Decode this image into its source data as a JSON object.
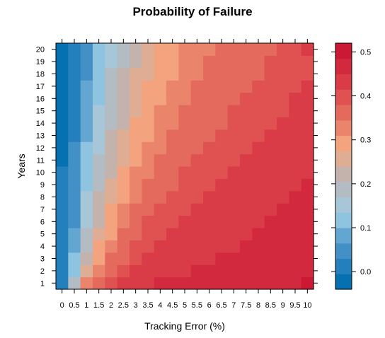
{
  "chart_data": {
    "type": "heatmap",
    "title": "Probability of Failure",
    "xlabel": "Tracking Error (%)",
    "ylabel": "Years",
    "x": [
      0,
      0.5,
      1,
      1.5,
      2,
      2.5,
      3,
      3.5,
      4,
      4.5,
      5,
      5.5,
      6,
      6.5,
      7,
      7.5,
      8,
      8.5,
      9,
      9.5,
      10
    ],
    "y": [
      1,
      2,
      3,
      4,
      5,
      6,
      7,
      8,
      9,
      10,
      11,
      12,
      13,
      14,
      15,
      16,
      17,
      18,
      19,
      20
    ],
    "x_tick_labels": [
      "0",
      "0.5",
      "1",
      "1.5",
      "2",
      "2.5",
      "3",
      "3.5",
      "4",
      "4.5",
      "5",
      "5.5",
      "6",
      "6.5",
      "7",
      "7.5",
      "8",
      "8.5",
      "9",
      "9.5",
      "10"
    ],
    "y_tick_labels": [
      "1",
      "2",
      "3",
      "4",
      "5",
      "6",
      "7",
      "8",
      "9",
      "10",
      "11",
      "12",
      "13",
      "14",
      "15",
      "16",
      "17",
      "18",
      "19",
      "20"
    ],
    "z": [
      [
        0.0,
        0.17,
        0.32,
        0.38,
        0.4,
        0.43,
        0.44,
        0.45,
        0.46,
        0.46,
        0.46,
        0.47,
        0.47,
        0.47,
        0.47,
        0.47,
        0.47,
        0.47,
        0.47,
        0.47,
        0.51
      ],
      [
        0.0,
        0.13,
        0.26,
        0.33,
        0.38,
        0.41,
        0.42,
        0.43,
        0.44,
        0.45,
        0.45,
        0.46,
        0.46,
        0.47,
        0.47,
        0.47,
        0.47,
        0.47,
        0.47,
        0.47,
        0.47
      ],
      [
        0.0,
        0.1,
        0.23,
        0.31,
        0.36,
        0.38,
        0.4,
        0.42,
        0.43,
        0.44,
        0.44,
        0.45,
        0.45,
        0.46,
        0.46,
        0.47,
        0.47,
        0.47,
        0.47,
        0.47,
        0.47
      ],
      [
        0.0,
        0.08,
        0.2,
        0.29,
        0.33,
        0.37,
        0.39,
        0.41,
        0.42,
        0.43,
        0.43,
        0.44,
        0.44,
        0.45,
        0.45,
        0.46,
        0.46,
        0.47,
        0.47,
        0.47,
        0.47
      ],
      [
        0.0,
        0.07,
        0.18,
        0.26,
        0.31,
        0.35,
        0.38,
        0.4,
        0.41,
        0.42,
        0.43,
        0.43,
        0.44,
        0.44,
        0.45,
        0.45,
        0.46,
        0.46,
        0.47,
        0.47,
        0.47
      ],
      [
        0.0,
        0.06,
        0.16,
        0.24,
        0.29,
        0.33,
        0.37,
        0.39,
        0.4,
        0.41,
        0.42,
        0.43,
        0.43,
        0.44,
        0.44,
        0.45,
        0.45,
        0.46,
        0.46,
        0.47,
        0.47
      ],
      [
        0.0,
        0.05,
        0.15,
        0.22,
        0.28,
        0.32,
        0.35,
        0.37,
        0.39,
        0.4,
        0.41,
        0.42,
        0.43,
        0.43,
        0.44,
        0.44,
        0.45,
        0.45,
        0.46,
        0.46,
        0.47
      ],
      [
        0.0,
        0.05,
        0.14,
        0.21,
        0.27,
        0.31,
        0.34,
        0.36,
        0.38,
        0.39,
        0.4,
        0.41,
        0.42,
        0.43,
        0.43,
        0.44,
        0.44,
        0.45,
        0.45,
        0.46,
        0.46
      ],
      [
        0.0,
        0.04,
        0.12,
        0.19,
        0.25,
        0.3,
        0.33,
        0.35,
        0.37,
        0.38,
        0.4,
        0.4,
        0.41,
        0.42,
        0.43,
        0.43,
        0.44,
        0.44,
        0.45,
        0.45,
        0.46
      ],
      [
        0.0,
        0.04,
        0.12,
        0.18,
        0.24,
        0.29,
        0.32,
        0.34,
        0.36,
        0.37,
        0.39,
        0.4,
        0.4,
        0.41,
        0.42,
        0.43,
        0.43,
        0.44,
        0.44,
        0.45,
        0.45
      ],
      [
        -0.01,
        0.03,
        0.11,
        0.17,
        0.23,
        0.27,
        0.31,
        0.33,
        0.35,
        0.36,
        0.38,
        0.39,
        0.4,
        0.4,
        0.41,
        0.42,
        0.43,
        0.43,
        0.44,
        0.44,
        0.45
      ],
      [
        -0.01,
        0.03,
        0.1,
        0.16,
        0.22,
        0.26,
        0.3,
        0.32,
        0.34,
        0.36,
        0.37,
        0.38,
        0.39,
        0.4,
        0.41,
        0.41,
        0.42,
        0.43,
        0.43,
        0.44,
        0.44
      ],
      [
        -0.01,
        0.02,
        0.09,
        0.15,
        0.21,
        0.25,
        0.29,
        0.31,
        0.33,
        0.35,
        0.36,
        0.37,
        0.38,
        0.39,
        0.4,
        0.41,
        0.41,
        0.42,
        0.43,
        0.43,
        0.44
      ],
      [
        -0.01,
        0.02,
        0.08,
        0.15,
        0.2,
        0.24,
        0.28,
        0.3,
        0.32,
        0.34,
        0.35,
        0.36,
        0.37,
        0.38,
        0.39,
        0.4,
        0.41,
        0.41,
        0.42,
        0.43,
        0.43
      ],
      [
        -0.01,
        0.02,
        0.08,
        0.14,
        0.19,
        0.24,
        0.27,
        0.3,
        0.32,
        0.33,
        0.35,
        0.36,
        0.37,
        0.38,
        0.39,
        0.39,
        0.4,
        0.41,
        0.41,
        0.42,
        0.43
      ],
      [
        -0.01,
        0.02,
        0.07,
        0.13,
        0.18,
        0.23,
        0.26,
        0.29,
        0.31,
        0.33,
        0.34,
        0.35,
        0.36,
        0.37,
        0.38,
        0.39,
        0.4,
        0.4,
        0.41,
        0.42,
        0.42
      ],
      [
        -0.01,
        0.02,
        0.07,
        0.13,
        0.17,
        0.22,
        0.25,
        0.28,
        0.3,
        0.32,
        0.33,
        0.35,
        0.36,
        0.37,
        0.37,
        0.38,
        0.39,
        0.4,
        0.4,
        0.41,
        0.42
      ],
      [
        -0.01,
        0.01,
        0.06,
        0.12,
        0.17,
        0.21,
        0.25,
        0.27,
        0.3,
        0.31,
        0.33,
        0.34,
        0.35,
        0.36,
        0.37,
        0.38,
        0.38,
        0.39,
        0.4,
        0.41,
        0.41
      ],
      [
        -0.01,
        0.01,
        0.06,
        0.11,
        0.16,
        0.2,
        0.24,
        0.27,
        0.29,
        0.31,
        0.32,
        0.33,
        0.35,
        0.36,
        0.36,
        0.37,
        0.38,
        0.39,
        0.39,
        0.4,
        0.41
      ],
      [
        -0.01,
        0.01,
        0.05,
        0.1,
        0.15,
        0.2,
        0.23,
        0.26,
        0.28,
        0.3,
        0.32,
        0.33,
        0.34,
        0.35,
        0.36,
        0.37,
        0.37,
        0.38,
        0.39,
        0.39,
        0.42
      ]
    ],
    "colorbar": {
      "ticks": [
        0.0,
        0.1,
        0.2,
        0.3,
        0.4,
        0.5
      ],
      "tick_labels": [
        "0.0",
        "0.1",
        "0.2",
        "0.3",
        "0.4",
        "0.5"
      ],
      "range": [
        -0.04,
        0.52
      ],
      "colors": [
        "#0571b0",
        "#2480bc",
        "#4390c7",
        "#64a6d2",
        "#8ec4e0",
        "#a7c6d8",
        "#b3bcc2",
        "#c4b3ad",
        "#dfad94",
        "#f3a47f",
        "#ea856c",
        "#e46a5e",
        "#df5251",
        "#d93c46",
        "#d3293e",
        "#cb1835"
      ]
    },
    "grid": false,
    "legend": "right"
  }
}
